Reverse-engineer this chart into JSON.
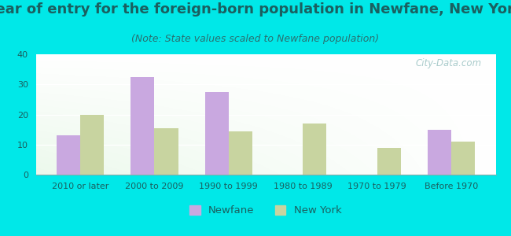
{
  "title": "Year of entry for the foreign-born population in Newfane, New York",
  "subtitle": "(Note: State values scaled to Newfane population)",
  "categories": [
    "2010 or later",
    "2000 to 2009",
    "1990 to 1999",
    "1980 to 1989",
    "1970 to 1979",
    "Before 1970"
  ],
  "newfane_values": [
    13,
    32.5,
    27.5,
    0,
    0,
    15
  ],
  "newyork_values": [
    20,
    15.5,
    14.5,
    17,
    9,
    11
  ],
  "newfane_color": "#c9a8e0",
  "newyork_color": "#c8d4a0",
  "background_color": "#00e8e8",
  "ylim": [
    0,
    40
  ],
  "yticks": [
    0,
    10,
    20,
    30,
    40
  ],
  "bar_width": 0.32,
  "title_fontsize": 13,
  "subtitle_fontsize": 9,
  "tick_fontsize": 8,
  "legend_labels": [
    "Newfane",
    "New York"
  ],
  "watermark": "City-Data.com",
  "text_color": "#1a6060",
  "subtitle_color": "#2a7070",
  "watermark_color": "#aacccc"
}
